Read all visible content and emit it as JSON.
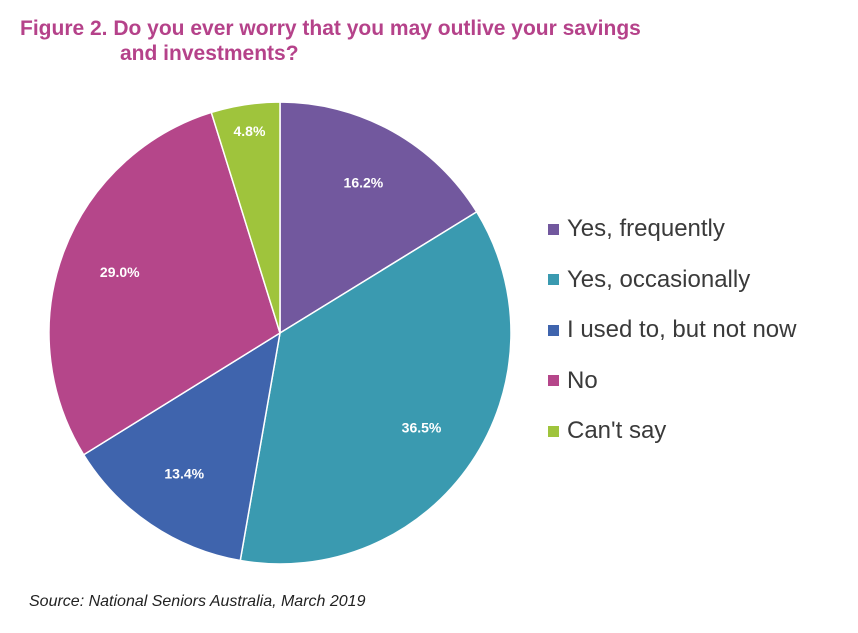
{
  "title": {
    "line1": "Figure 2. Do you ever worry that you may outlive your savings",
    "line2": "and investments?"
  },
  "source": "Source: National Seniors Australia, March 2019",
  "chart_data": {
    "type": "pie",
    "categories": [
      "Yes, frequently",
      "Yes, occasionally",
      "I used to, but not now",
      "No",
      "Can't say"
    ],
    "values": [
      16.2,
      36.5,
      13.4,
      29.0,
      4.8
    ],
    "data_labels": [
      "16.2%",
      "36.5%",
      "13.4%",
      "29.0%",
      "4.8%"
    ],
    "colors": [
      "#72589e",
      "#3a9ab0",
      "#3f64ad",
      "#b5468a",
      "#9fc43c"
    ],
    "start_angle": "12 o'clock",
    "direction": "clockwise",
    "legend_position": "right"
  }
}
